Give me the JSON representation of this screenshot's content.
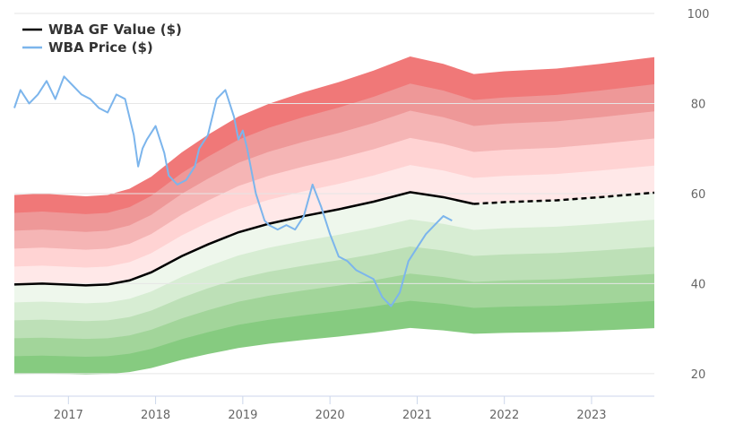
{
  "chart_data": {
    "type": "area",
    "title": "",
    "xlabel": "",
    "ylabel": "",
    "ylim": [
      15,
      100
    ],
    "xlim": [
      2016.38,
      2023.72
    ],
    "grid": true,
    "legend_position": "top-left",
    "x_ticks": [
      2017,
      2018,
      2019,
      2020,
      2021,
      2022,
      2023
    ],
    "x_tick_labels": [
      "2017",
      "2018",
      "2019",
      "2020",
      "2021",
      "2022",
      "2023"
    ],
    "y_ticks": [
      20,
      40,
      60,
      80,
      100
    ],
    "y_tick_labels": [
      "20",
      "40",
      "60",
      "80",
      "100"
    ],
    "colors": {
      "value_line": "#000000",
      "price_line": "#7cb5ec",
      "upper_bands": [
        "#ffe8e8",
        "#ffd3d3",
        "#f5b5b5",
        "#ee9898",
        "#f07878"
      ],
      "lower_bands": [
        "#eef7ec",
        "#d7edd3",
        "#bde0b7",
        "#a2d59a",
        "#86cb80"
      ],
      "grid": "#e6e6e6",
      "axis": "#ccd6eb"
    },
    "band_offsets_percent": [
      10,
      20,
      30,
      40,
      50
    ],
    "series": [
      {
        "name": "WBA GF Value ($)",
        "key": "gf_value",
        "x": [
          2016.38,
          2016.7,
          2017.2,
          2017.45,
          2017.7,
          2017.95,
          2018.3,
          2018.6,
          2018.95,
          2019.3,
          2019.7,
          2020.1,
          2020.5,
          2020.92,
          2021.3,
          2021.65,
          2022.0,
          2022.6,
          2023.1,
          2023.72
        ],
        "values": [
          39.8,
          40.0,
          39.6,
          39.8,
          40.7,
          42.5,
          46.1,
          48.7,
          51.4,
          53.3,
          55.0,
          56.5,
          58.2,
          60.3,
          59.2,
          57.7,
          58.1,
          58.5,
          59.2,
          60.2
        ],
        "estimated_from_x": 2021.65
      },
      {
        "name": "WBA Price ($)",
        "key": "price",
        "x": [
          2016.38,
          2016.45,
          2016.55,
          2016.65,
          2016.75,
          2016.85,
          2016.95,
          2017.05,
          2017.15,
          2017.25,
          2017.35,
          2017.45,
          2017.55,
          2017.65,
          2017.75,
          2017.8,
          2017.85,
          2017.9,
          2018.0,
          2018.1,
          2018.15,
          2018.25,
          2018.35,
          2018.45,
          2018.5,
          2018.6,
          2018.7,
          2018.8,
          2018.9,
          2018.95,
          2019.0,
          2019.05,
          2019.15,
          2019.2,
          2019.25,
          2019.3,
          2019.4,
          2019.5,
          2019.6,
          2019.7,
          2019.8,
          2019.9,
          2020.0,
          2020.1,
          2020.2,
          2020.3,
          2020.4,
          2020.5,
          2020.6,
          2020.7,
          2020.8,
          2020.9,
          2021.0,
          2021.1,
          2021.2,
          2021.3,
          2021.4
        ],
        "values": [
          79,
          83,
          80,
          82,
          85,
          81,
          86,
          84,
          82,
          81,
          79,
          78,
          82,
          81,
          73,
          66,
          70,
          72,
          75,
          69,
          64,
          62,
          63,
          66,
          70,
          73,
          81,
          83,
          77,
          72,
          74,
          70,
          60,
          57,
          54,
          53,
          52,
          53,
          52,
          55,
          62,
          57,
          51,
          46,
          45,
          43,
          42,
          41,
          37,
          35,
          38,
          45,
          48,
          51,
          53,
          55,
          54
        ]
      }
    ]
  }
}
